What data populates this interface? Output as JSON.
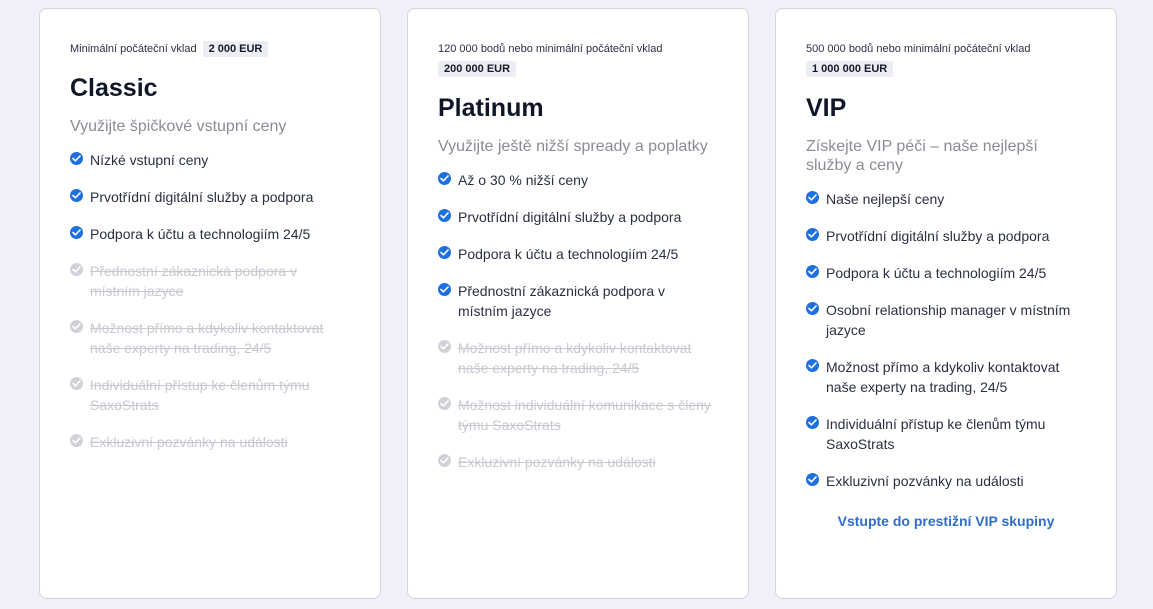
{
  "plans": [
    {
      "deposit_prefix": "Minimální počáteční vklad",
      "deposit_amount": "2 000 EUR",
      "name": "Classic",
      "subtitle": "Využijte špičkové vstupní ceny",
      "features": [
        {
          "text": "Nízké vstupní ceny",
          "included": true
        },
        {
          "text": "Prvotřídní digitální služby a podpora",
          "included": true
        },
        {
          "text": "Podpora k účtu a technologiím 24/5",
          "included": true
        },
        {
          "text": "Přednostní zákaznická podpora v místním jazyce",
          "included": false
        },
        {
          "text": "Možnost přímo a kdykoliv kontaktovat naše experty na trading, 24/5",
          "included": false
        },
        {
          "text": "Individuální přístup ke členům týmu SaxoStrats",
          "included": false
        },
        {
          "text": "Exkluzivní pozvánky na události",
          "included": false
        }
      ]
    },
    {
      "deposit_prefix": "120 000 bodů nebo minimální počáteční vklad",
      "deposit_amount": "200 000 EUR",
      "name": "Platinum",
      "subtitle": "Využijte ještě nižší spready a poplatky",
      "features": [
        {
          "text": "Až o 30 % nižší ceny",
          "included": true
        },
        {
          "text": "Prvotřídní digitální služby a podpora",
          "included": true
        },
        {
          "text": "Podpora k účtu a technologiím 24/5",
          "included": true
        },
        {
          "text": "Přednostní zákaznická podpora v místním jazyce",
          "included": true
        },
        {
          "text": "Možnost přímo a kdykoliv kontaktovat naše experty na trading, 24/5",
          "included": false
        },
        {
          "text": "Možnost individuální komunikace s členy týmu SaxoStrats",
          "included": false
        },
        {
          "text": "Exkluzivní pozvánky na události",
          "included": false
        }
      ]
    },
    {
      "deposit_prefix": "500 000 bodů nebo minimální počáteční vklad",
      "deposit_amount": "1 000 000 EUR",
      "name": "VIP",
      "subtitle": "Získejte VIP péči – naše nejlepší služby a ceny",
      "features": [
        {
          "text": "Naše nejlepší ceny",
          "included": true
        },
        {
          "text": "Prvotřídní digitální služby a podpora",
          "included": true
        },
        {
          "text": "Podpora k účtu a technologiím 24/5",
          "included": true
        },
        {
          "text": "Osobní relationship manager v místním jazyce",
          "included": true
        },
        {
          "text": "Možnost přímo a kdykoliv kontaktovat naše experty na trading, 24/5",
          "included": true
        },
        {
          "text": "Individuální přístup ke členům týmu SaxoStrats",
          "included": true
        },
        {
          "text": "Exkluzivní pozvánky na události",
          "included": true
        }
      ],
      "cta": "Vstupte do prestižní VIP skupiny"
    }
  ],
  "colors": {
    "check_on": "#1e6fe0",
    "check_off": "#d0d2d8",
    "cta": "#2f6ec8"
  }
}
